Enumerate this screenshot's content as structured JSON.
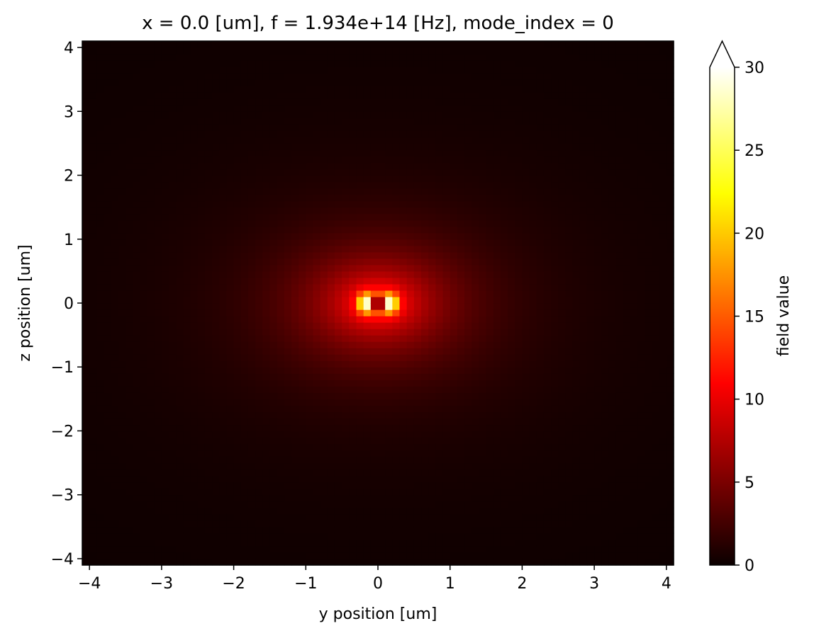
{
  "chart_data": {
    "type": "heatmap",
    "title": "x = 0.0 [um], f = 1.934e+14 [Hz], mode_index = 0",
    "xlabel": "y position [um]",
    "ylabel": "z position [um]",
    "xlim": [
      -4.1,
      4.1
    ],
    "ylim": [
      -4.1,
      4.1
    ],
    "xticks": [
      -4,
      -3,
      -2,
      -1,
      0,
      1,
      2,
      3,
      4
    ],
    "yticks": [
      -4,
      -3,
      -2,
      -1,
      0,
      1,
      2,
      3,
      4
    ],
    "xtick_labels": [
      "−4",
      "−3",
      "−2",
      "−1",
      "0",
      "1",
      "2",
      "3",
      "4"
    ],
    "ytick_labels": [
      "−4",
      "−3",
      "−2",
      "−1",
      "0",
      "1",
      "2",
      "3",
      "4"
    ],
    "colormap": "hot",
    "colorbar": {
      "label": "field value",
      "vmin": 0,
      "vmax": 30,
      "extend": "max",
      "ticks": [
        0,
        5,
        10,
        15,
        20,
        25,
        30
      ],
      "tick_labels": [
        "0",
        "5",
        "10",
        "15",
        "20",
        "25",
        "30"
      ]
    },
    "field_description": {
      "core_center": [
        0,
        0
      ],
      "core_half_width_y": 0.1,
      "core_half_width_z": 0.12,
      "core_value": 7,
      "peak_value": 31,
      "peak_positions_y": [
        -0.15,
        0.15
      ],
      "grid_step": 0.1
    },
    "grid": false
  }
}
